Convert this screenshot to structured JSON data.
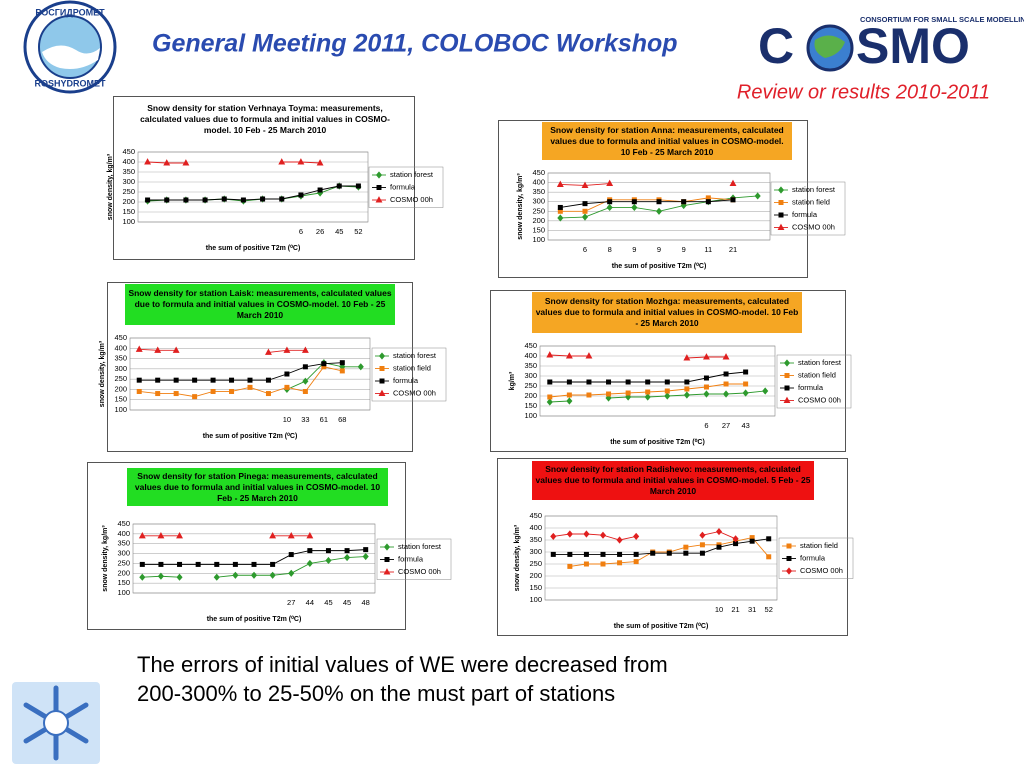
{
  "header": {
    "title": "General Meeting 2011, COLOBOC Workshop",
    "subtitle": "Review or results 2010-2011",
    "logo_top": "РОСГИДРОМЕТ",
    "logo_bottom": "ROSHYDROMET",
    "cosmo_c": "C",
    "cosmo_smo": "SMO",
    "consortium": "CONSORTIUM FOR SMALL SCALE MODELLING"
  },
  "footer": {
    "text": "The errors of initial values of WE were decreased from 200-300% to 25-50% on the must part of stations"
  },
  "chart_data": [
    {
      "type": "line",
      "title": "Snow density for station Verhnaya Toyma: measurements, calculated values due to formula and initial values in COSMO-model. 10 Feb - 25 March 2010",
      "title_color": "#ffffff",
      "y_label": "snow density, kg/m³",
      "x_label": "the sum of positive T2m (⁰C)",
      "categories": [
        null,
        null,
        null,
        null,
        null,
        null,
        null,
        null,
        "6",
        "26",
        "45",
        "52"
      ],
      "ylim": [
        100,
        450
      ],
      "yticks": [
        100,
        150,
        200,
        250,
        300,
        350,
        400,
        450
      ],
      "grid": true,
      "series": [
        {
          "name": "station forest",
          "color": "#2e9a2e",
          "marker": "diamond",
          "values": [
            205,
            210,
            210,
            210,
            215,
            205,
            215,
            215,
            230,
            245,
            280,
            275
          ]
        },
        {
          "name": "formula",
          "color": "#000000",
          "marker": "square",
          "values": [
            210,
            210,
            210,
            210,
            215,
            210,
            215,
            215,
            235,
            260,
            280,
            280
          ]
        },
        {
          "name": "COSMO 00h",
          "color": "#e02020",
          "marker": "triangle",
          "values": [
            400,
            395,
            395,
            null,
            null,
            null,
            null,
            400,
            400,
            395,
            null,
            null
          ]
        }
      ]
    },
    {
      "type": "line",
      "title": "Snow density for station Anna: measurements, calculated values due to formula and initial values in COSMO-model. 10 Feb - 25 March 2010",
      "title_color": "#f5a623",
      "y_label": "snow density, kg/m³",
      "x_label": "the sum of positive T2m (⁰C)",
      "categories": [
        null,
        "6",
        "8",
        "9",
        "9",
        "9",
        "11",
        "21",
        null
      ],
      "ylim": [
        100,
        450
      ],
      "yticks": [
        100,
        150,
        200,
        250,
        300,
        350,
        400,
        450
      ],
      "grid": true,
      "series": [
        {
          "name": "station forest",
          "color": "#2e9a2e",
          "marker": "diamond",
          "values": [
            215,
            220,
            270,
            270,
            250,
            280,
            300,
            320,
            330
          ]
        },
        {
          "name": "station field",
          "color": "#f07f10",
          "marker": "square",
          "values": [
            250,
            250,
            310,
            310,
            310,
            300,
            320,
            310,
            null
          ]
        },
        {
          "name": "formula",
          "color": "#000000",
          "marker": "square",
          "values": [
            270,
            290,
            300,
            300,
            300,
            300,
            300,
            310,
            null
          ]
        },
        {
          "name": "COSMO 00h",
          "color": "#e02020",
          "marker": "triangle",
          "values": [
            390,
            385,
            395,
            null,
            null,
            null,
            null,
            395,
            null
          ]
        }
      ]
    },
    {
      "type": "line",
      "title": "Snow density for station Laisk: measurements, calculated values due to formula and initial values in COSMO-model. 10 Feb - 25 March 2010",
      "title_color": "#22dd22",
      "y_label": "snow density, kg/m³",
      "x_label": "the sum of positive T2m (⁰C)",
      "categories": [
        null,
        null,
        null,
        null,
        null,
        null,
        null,
        null,
        "10",
        "33",
        "61",
        "68",
        null
      ],
      "ylim": [
        100,
        450
      ],
      "yticks": [
        100,
        150,
        200,
        250,
        300,
        350,
        400,
        450
      ],
      "grid": true,
      "series": [
        {
          "name": "station forest",
          "color": "#2e9a2e",
          "marker": "diamond",
          "values": [
            null,
            null,
            null,
            null,
            null,
            null,
            null,
            null,
            200,
            240,
            330,
            310,
            310
          ]
        },
        {
          "name": "station field",
          "color": "#f07f10",
          "marker": "square",
          "values": [
            190,
            180,
            180,
            165,
            190,
            190,
            210,
            180,
            210,
            190,
            310,
            290,
            null
          ]
        },
        {
          "name": "formula",
          "color": "#000000",
          "marker": "square",
          "values": [
            245,
            245,
            245,
            245,
            245,
            245,
            245,
            245,
            275,
            310,
            325,
            330,
            null
          ]
        },
        {
          "name": "COSMO 00h",
          "color": "#e02020",
          "marker": "triangle",
          "values": [
            395,
            390,
            390,
            null,
            null,
            null,
            null,
            380,
            390,
            390,
            null,
            null,
            null
          ]
        }
      ]
    },
    {
      "type": "line",
      "title": "Snow density for station Mozhga: measurements, calculated values due to formula and initial values in COSMO-model. 10 Feb - 25 March 2010",
      "title_color": "#f5a623",
      "y_label": "kg/m³",
      "x_label": "the sum of positive T2m (⁰C)",
      "categories": [
        null,
        null,
        null,
        null,
        null,
        null,
        null,
        null,
        "6",
        "27",
        "43",
        null
      ],
      "ylim": [
        100,
        450
      ],
      "yticks": [
        100,
        150,
        200,
        250,
        300,
        350,
        400,
        450
      ],
      "grid": true,
      "series": [
        {
          "name": "station forest",
          "color": "#2e9a2e",
          "marker": "diamond",
          "values": [
            170,
            175,
            null,
            190,
            195,
            195,
            200,
            205,
            210,
            210,
            215,
            225
          ]
        },
        {
          "name": "station field",
          "color": "#f07f10",
          "marker": "square",
          "values": [
            195,
            205,
            205,
            210,
            215,
            220,
            225,
            235,
            245,
            260,
            260,
            null
          ]
        },
        {
          "name": "formula",
          "color": "#000000",
          "marker": "square",
          "values": [
            270,
            270,
            270,
            270,
            270,
            270,
            270,
            270,
            290,
            310,
            320,
            null
          ]
        },
        {
          "name": "COSMO 00h",
          "color": "#e02020",
          "marker": "triangle",
          "values": [
            405,
            400,
            400,
            null,
            null,
            null,
            null,
            390,
            395,
            395,
            null,
            null
          ]
        }
      ]
    },
    {
      "type": "line",
      "title": "Snow density for station Pinega: measurements, calculated values due to formula and initial values in COSMO-model. 10 Feb - 25 March 2010",
      "title_color": "#22dd22",
      "y_label": "snow density, kg/m³",
      "x_label": "the sum of positive T2m (⁰C)",
      "categories": [
        null,
        null,
        null,
        null,
        null,
        null,
        null,
        null,
        "27",
        "44",
        "45",
        "45",
        "48"
      ],
      "ylim": [
        100,
        450
      ],
      "yticks": [
        100,
        150,
        200,
        250,
        300,
        350,
        400,
        450
      ],
      "grid": true,
      "series": [
        {
          "name": "station forest",
          "color": "#2e9a2e",
          "marker": "diamond",
          "values": [
            180,
            185,
            180,
            null,
            180,
            190,
            190,
            190,
            200,
            250,
            265,
            280,
            285
          ]
        },
        {
          "name": "formula",
          "color": "#000000",
          "marker": "square",
          "values": [
            245,
            245,
            245,
            245,
            245,
            245,
            245,
            245,
            295,
            315,
            315,
            315,
            320
          ]
        },
        {
          "name": "COSMO 00h",
          "color": "#e02020",
          "marker": "triangle",
          "values": [
            390,
            390,
            390,
            null,
            null,
            null,
            null,
            390,
            390,
            390,
            null,
            null,
            null
          ]
        }
      ]
    },
    {
      "type": "line",
      "title": "Snow density for station Radishevo: measurements, calculated values due to formula and initial values in COSMO-model. 5 Feb - 25 March 2010",
      "title_color": "#ee1111",
      "y_label": "snow density, kg/m³",
      "x_label": "the sum of positive T2m (⁰C)",
      "categories": [
        null,
        null,
        null,
        null,
        null,
        null,
        null,
        null,
        null,
        null,
        "10",
        "21",
        "31",
        "52"
      ],
      "ylim": [
        100,
        450
      ],
      "yticks": [
        100,
        150,
        200,
        250,
        300,
        350,
        400,
        450
      ],
      "grid": true,
      "series": [
        {
          "name": "station field",
          "color": "#f07f10",
          "marker": "square",
          "values": [
            null,
            240,
            250,
            250,
            255,
            260,
            300,
            300,
            320,
            330,
            330,
            345,
            360,
            280
          ]
        },
        {
          "name": "formula",
          "color": "#000000",
          "marker": "square",
          "values": [
            290,
            290,
            290,
            290,
            290,
            290,
            295,
            295,
            295,
            295,
            320,
            335,
            345,
            355
          ]
        },
        {
          "name": "COSMO 00h",
          "color": "#e02020",
          "marker": "diamond",
          "values": [
            365,
            375,
            375,
            370,
            350,
            365,
            null,
            null,
            null,
            370,
            385,
            355,
            null,
            null
          ]
        }
      ]
    }
  ]
}
